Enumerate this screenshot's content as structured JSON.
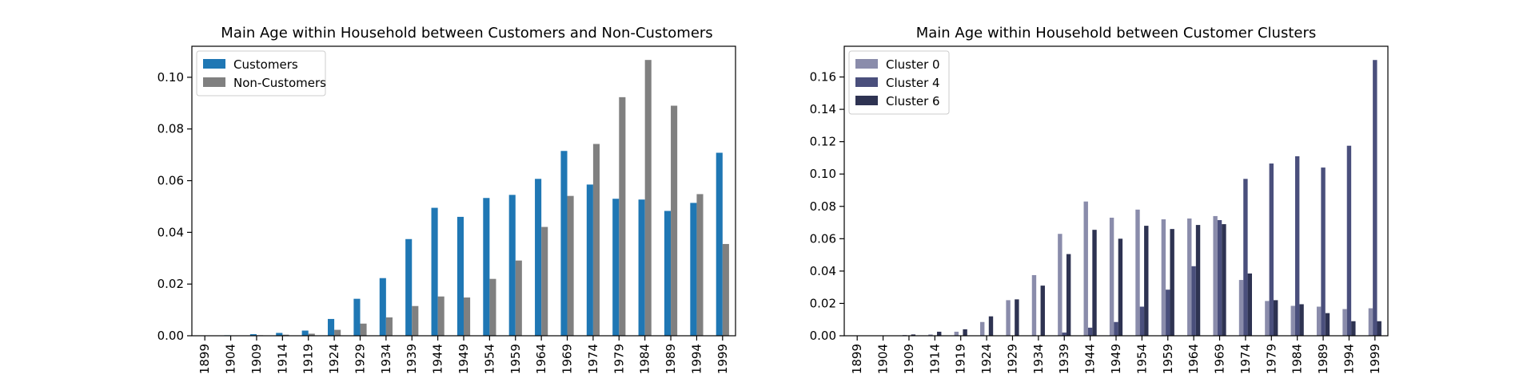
{
  "chart_data": [
    {
      "type": "bar",
      "title": "Main Age within Household between Customers and Non-Customers",
      "xlabel": "",
      "ylabel": "",
      "ylim": [
        0,
        0.112
      ],
      "yticks": [
        "0.00",
        "0.02",
        "0.04",
        "0.06",
        "0.08",
        "0.10"
      ],
      "ytick_values": [
        0,
        0.02,
        0.04,
        0.06,
        0.08,
        0.1
      ],
      "legend_position": "top-left",
      "grid": false,
      "categories": [
        "1899",
        "1904",
        "1909",
        "1914",
        "1919",
        "1924",
        "1929",
        "1934",
        "1939",
        "1944",
        "1949",
        "1954",
        "1959",
        "1964",
        "1969",
        "1974",
        "1979",
        "1984",
        "1989",
        "1994",
        "1999"
      ],
      "series": [
        {
          "name": "Customers",
          "color": "#1f77b4",
          "values": [
            0.0,
            0.0002,
            0.0006,
            0.0011,
            0.002,
            0.0065,
            0.0143,
            0.0223,
            0.0374,
            0.0495,
            0.046,
            0.0533,
            0.0545,
            0.0607,
            0.0715,
            0.0585,
            0.053,
            0.0527,
            0.0483,
            0.0514,
            0.0708
          ]
        },
        {
          "name": "Non-Customers",
          "color": "#808080",
          "values": [
            0.0,
            0.0,
            0.0002,
            0.0004,
            0.0008,
            0.0023,
            0.0047,
            0.0071,
            0.0115,
            0.0152,
            0.0148,
            0.022,
            0.0291,
            0.0421,
            0.0541,
            0.0742,
            0.0923,
            0.1067,
            0.089,
            0.0548,
            0.0355
          ]
        }
      ]
    },
    {
      "type": "bar",
      "title": "Main Age within Household between Customer Clusters",
      "xlabel": "",
      "ylabel": "",
      "ylim": [
        0,
        0.179
      ],
      "yticks": [
        "0.00",
        "0.02",
        "0.04",
        "0.06",
        "0.08",
        "0.10",
        "0.12",
        "0.14",
        "0.16"
      ],
      "ytick_values": [
        0,
        0.02,
        0.04,
        0.06,
        0.08,
        0.1,
        0.12,
        0.14,
        0.16
      ],
      "legend_position": "top-left",
      "grid": false,
      "categories": [
        "1899",
        "1904",
        "1909",
        "1914",
        "1919",
        "1924",
        "1929",
        "1934",
        "1939",
        "1944",
        "1949",
        "1954",
        "1959",
        "1964",
        "1969",
        "1974",
        "1979",
        "1984",
        "1989",
        "1994",
        "1999"
      ],
      "series": [
        {
          "name": "Cluster 0",
          "color": "#8a8cab",
          "values": [
            0.0,
            0.0,
            0.0005,
            0.0008,
            0.0025,
            0.0085,
            0.022,
            0.0375,
            0.063,
            0.083,
            0.073,
            0.078,
            0.072,
            0.0725,
            0.074,
            0.0345,
            0.0215,
            0.0185,
            0.018,
            0.0165,
            0.017
          ]
        },
        {
          "name": "Cluster 4",
          "color": "#4a4f7c",
          "values": [
            0.0,
            0.0,
            0.0,
            0.0,
            0.0,
            0.0,
            0.0,
            0.0,
            0.002,
            0.005,
            0.0085,
            0.018,
            0.0285,
            0.043,
            0.0715,
            0.097,
            0.1065,
            0.111,
            0.104,
            0.1175,
            0.1705
          ]
        },
        {
          "name": "Cluster 6",
          "color": "#2e3352",
          "values": [
            0.0,
            0.0,
            0.0008,
            0.0025,
            0.004,
            0.012,
            0.0225,
            0.031,
            0.0505,
            0.0655,
            0.06,
            0.068,
            0.066,
            0.0685,
            0.069,
            0.0385,
            0.022,
            0.0195,
            0.014,
            0.009,
            0.009
          ]
        }
      ]
    }
  ]
}
